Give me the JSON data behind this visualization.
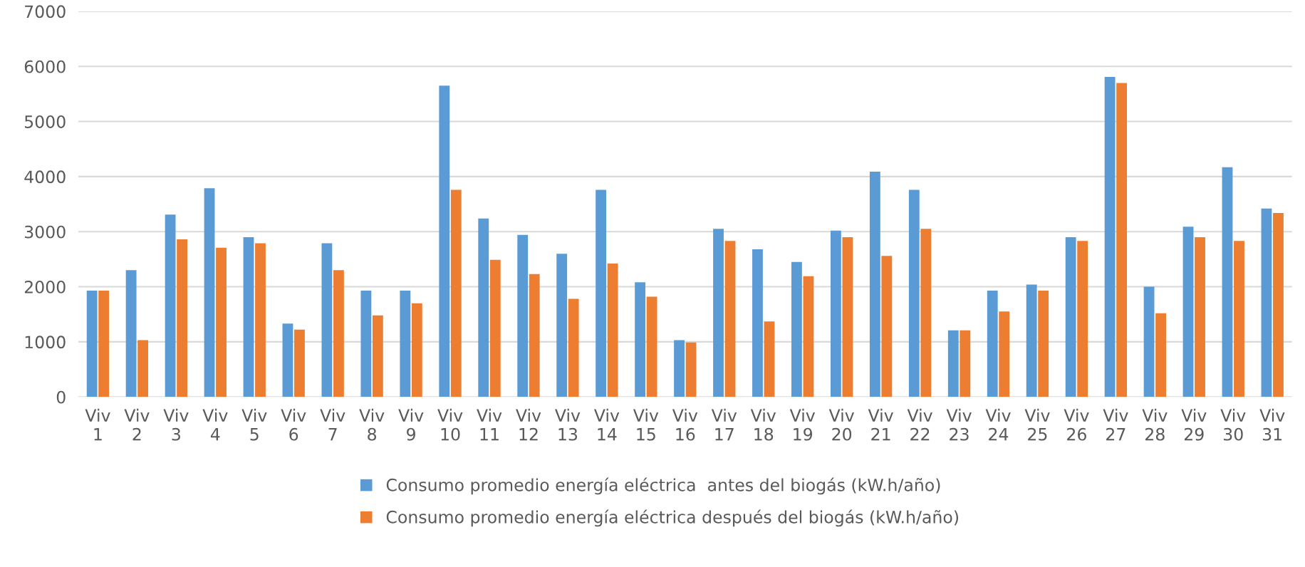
{
  "chart_data": {
    "type": "bar",
    "categories": [
      "Viv\n1",
      "Viv\n2",
      "Viv\n3",
      "Viv\n4",
      "Viv\n5",
      "Viv\n6",
      "Viv\n7",
      "Viv\n8",
      "Viv\n9",
      "Viv\n10",
      "Viv\n11",
      "Viv\n12",
      "Viv\n13",
      "Viv\n14",
      "Viv\n15",
      "Viv\n16",
      "Viv\n17",
      "Viv\n18",
      "Viv\n19",
      "Viv\n20",
      "Viv\n21",
      "Viv\n22",
      "Viv\n23",
      "Viv\n24",
      "Viv\n25",
      "Viv\n26",
      "Viv\n27",
      "Viv\n28",
      "Viv\n29",
      "Viv\n30",
      "Viv\n31"
    ],
    "series": [
      {
        "name": "Consumo promedio energía eléctrica  antes del biogás (kW.h/año)",
        "color": "#5b9bd5",
        "values": [
          1930,
          2300,
          3310,
          3790,
          2900,
          1330,
          2790,
          1930,
          1930,
          5650,
          3240,
          2940,
          2600,
          3760,
          2080,
          1030,
          3050,
          2680,
          2450,
          3020,
          4090,
          3760,
          1210,
          1930,
          2040,
          2900,
          5810,
          2000,
          3090,
          4170,
          3420
        ]
      },
      {
        "name": "Consumo promedio energía eléctrica después del biogás (kW.h/año)",
        "color": "#ed7d31",
        "values": [
          1930,
          1030,
          2860,
          2710,
          2790,
          1220,
          2300,
          1480,
          1700,
          3760,
          2490,
          2230,
          1780,
          2420,
          1820,
          990,
          2830,
          1370,
          2190,
          2900,
          2560,
          3050,
          1210,
          1550,
          1930,
          2830,
          5700,
          1520,
          2900,
          2830,
          3340
        ]
      }
    ],
    "ylim": [
      0,
      7000
    ],
    "yticks": [
      0,
      1000,
      2000,
      3000,
      4000,
      5000,
      6000,
      7000
    ],
    "grid": "y",
    "legend": "bottom"
  }
}
